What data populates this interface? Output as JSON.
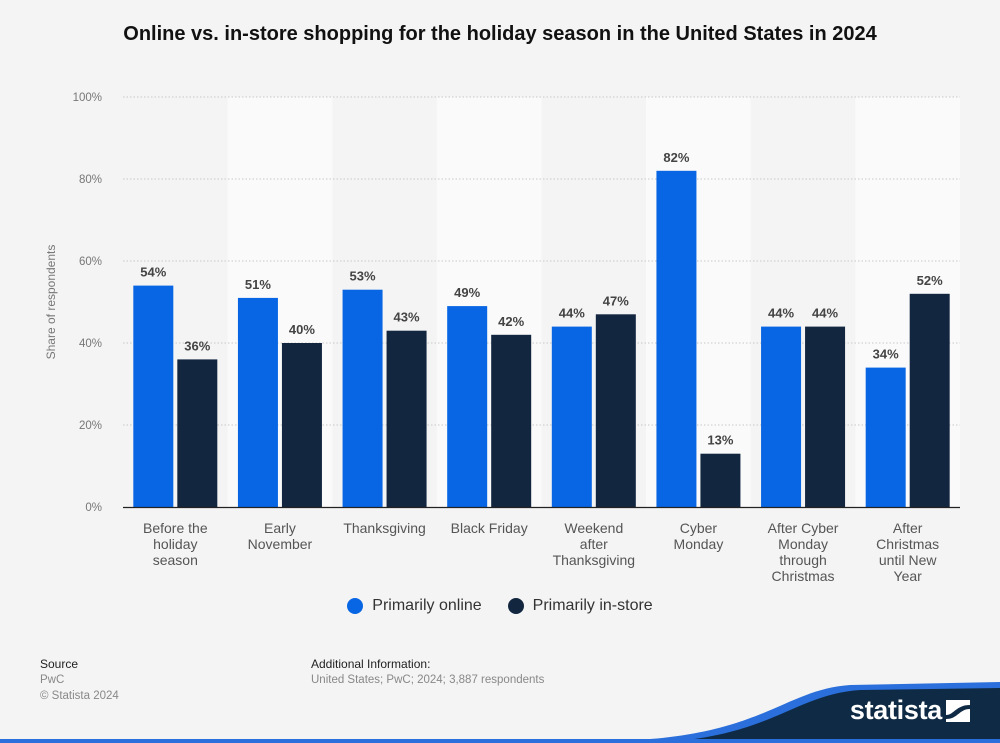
{
  "chart_data": {
    "type": "bar",
    "title": "Online vs. in-store shopping for the holiday season in the United States in 2024",
    "xlabel": "",
    "ylabel": "Share of respondents",
    "ylim": [
      0,
      100
    ],
    "yticks": [
      "0%",
      "20%",
      "40%",
      "60%",
      "80%",
      "100%"
    ],
    "ytick_values": [
      0,
      20,
      40,
      60,
      80,
      100
    ],
    "grid": true,
    "legend_position": "bottom",
    "categories": [
      [
        "Before the",
        "holiday",
        "season"
      ],
      [
        "Early",
        "November"
      ],
      [
        "Thanksgiving"
      ],
      [
        "Black Friday"
      ],
      [
        "Weekend",
        "after",
        "Thanksgiving"
      ],
      [
        "Cyber",
        "Monday"
      ],
      [
        "After Cyber",
        "Monday",
        "through",
        "Christmas"
      ],
      [
        "After",
        "Christmas",
        "until New",
        "Year"
      ]
    ],
    "series": [
      {
        "name": "Primarily online",
        "color": "#0866e4",
        "values": [
          54,
          51,
          53,
          49,
          44,
          82,
          44,
          34
        ]
      },
      {
        "name": "Primarily in-store",
        "color": "#12263f",
        "values": [
          36,
          40,
          43,
          42,
          47,
          13,
          44,
          52
        ]
      }
    ],
    "value_suffix": "%"
  },
  "legend": {
    "items": [
      {
        "label": "Primarily online",
        "color": "#0866e4"
      },
      {
        "label": "Primarily in-store",
        "color": "#12263f"
      }
    ]
  },
  "footer": {
    "source_title": "Source",
    "source_name": "PwC",
    "copyright": "© Statista 2024",
    "additional_title": "Additional Information:",
    "additional_text": "United States; PwC; 2024; 3,887 respondents",
    "brand": "statista"
  },
  "colors": {
    "background": "#f4f4f4",
    "band": "#fafafa",
    "footer_dark": "#0f2a44",
    "footer_accent": "#2a6fdb"
  }
}
